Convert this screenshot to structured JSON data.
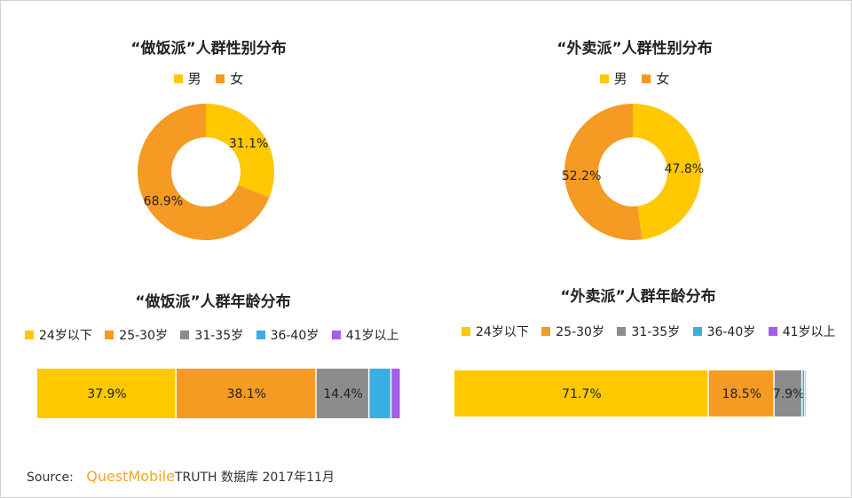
{
  "colors": {
    "yellow": "#FFC800",
    "orange": "#F59A23",
    "gray": "#8C8C8C",
    "blue": "#3AAEE0",
    "purple": "#A45EEB"
  },
  "chart_data": [
    {
      "type": "pie",
      "title": "“做饭派”人群性别分布",
      "labels": [
        "男",
        "女"
      ],
      "values": [
        31.1,
        68.9
      ],
      "value_labels": [
        "31.1%",
        "68.9%"
      ],
      "colors": [
        "#FFC800",
        "#F59A23"
      ],
      "legend": "top"
    },
    {
      "type": "pie",
      "title": "“外卖派”人群性别分布",
      "labels": [
        "男",
        "女"
      ],
      "values": [
        47.8,
        52.2
      ],
      "value_labels": [
        "47.8%",
        "52.2%"
      ],
      "colors": [
        "#FFC800",
        "#F59A23"
      ],
      "legend": "top"
    },
    {
      "type": "bar",
      "orientation": "stacked-horizontal",
      "title": "“做饭派”人群年龄分布",
      "categories": [
        "24岁以下",
        "25-30岁",
        "31-35岁",
        "36-40岁",
        "41岁以上"
      ],
      "values": [
        37.9,
        38.1,
        14.4,
        6.0,
        2.6
      ],
      "value_labels": [
        "37.9%",
        "38.1%",
        "14.4%",
        "",
        ""
      ],
      "colors": [
        "#FFC800",
        "#F59A23",
        "#8C8C8C",
        "#3AAEE0",
        "#A45EEB"
      ],
      "legend": "top"
    },
    {
      "type": "bar",
      "orientation": "stacked-horizontal",
      "title": "“外卖派”人群年龄分布",
      "categories": [
        "24岁以下",
        "25-30岁",
        "31-35岁",
        "36-40岁",
        "41岁以上"
      ],
      "values": [
        71.7,
        18.5,
        7.9,
        0.8,
        0.1
      ],
      "value_labels": [
        "71.7%",
        "18.5%",
        "7.9%",
        "",
        ""
      ],
      "colors": [
        "#FFC800",
        "#F59A23",
        "#8C8C8C",
        "#3AAEE0",
        "#A45EEB"
      ],
      "legend": "top"
    }
  ],
  "source": {
    "label": "Source:",
    "brand": "QuestMobile",
    "text": "TRUTH 数据库 2017年11月"
  }
}
